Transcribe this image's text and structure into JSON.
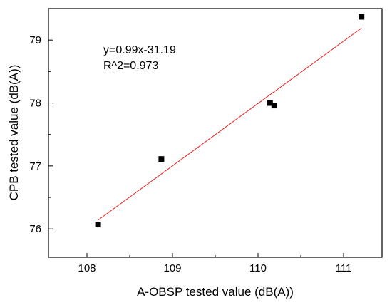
{
  "chart_data": {
    "type": "scatter",
    "xlabel": "A-OBSP tested value (dB(A))",
    "ylabel": "CPB tested value (dB(A))",
    "xlim": [
      107.55,
      111.45
    ],
    "ylim": [
      75.55,
      79.5
    ],
    "xticks": [
      108,
      109,
      110,
      111
    ],
    "yticks": [
      76,
      77,
      78,
      79
    ],
    "grid": false,
    "series": [
      {
        "points": [
          {
            "x": 108.13,
            "y": 76.07
          },
          {
            "x": 108.87,
            "y": 77.11
          },
          {
            "x": 110.14,
            "y": 78.0
          },
          {
            "x": 110.19,
            "y": 77.96
          },
          {
            "x": 111.21,
            "y": 79.37
          }
        ],
        "marker_color": "#000000"
      }
    ],
    "fit": {
      "x_start": 108.13,
      "x_end": 111.21,
      "y_start": 76.14,
      "y_end": 79.19,
      "color": "#e8201c"
    },
    "annotations": [
      "y=0.99x-31.19",
      "R^2=0.973"
    ]
  }
}
